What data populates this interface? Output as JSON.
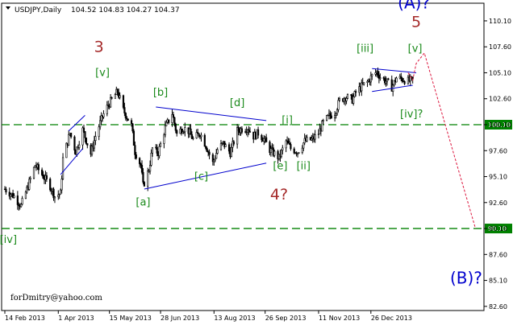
{
  "header": {
    "symbol": "USDJPY,Daily",
    "ohlc": "104.52 104.83 104.27 104.37"
  },
  "credit": "forDmitry@yahoo.com",
  "colors": {
    "candle": "#000000",
    "grid": "#c0c0c0",
    "level": "#008000",
    "trend": "#0000cd",
    "wave_green": "#1a8a1a",
    "wave_red": "#a52a2a",
    "wave_blue": "#0000cd",
    "projection": "#dc143c"
  },
  "chart_data": {
    "type": "candlestick",
    "y_ticks": [
      "110.10",
      "107.60",
      "105.10",
      "102.60",
      "100.10",
      "97.60",
      "95.10",
      "92.60",
      "90.10",
      "87.60",
      "85.10",
      "82.60"
    ],
    "x_ticks": [
      "14 Feb 2013",
      "1 Apr 2013",
      "15 May 2013",
      "28 Jun 2013",
      "13 Aug 2013",
      "26 Sep 2013",
      "11 Nov 2013",
      "26 Dec 2013"
    ],
    "ylim": [
      82.2,
      111.8
    ],
    "x_range": [
      "2013-02-14",
      "2014-02-03"
    ],
    "price_levels": [
      {
        "label": "100.10",
        "price": 100.1
      },
      {
        "label": "90.10",
        "price": 90.1
      }
    ],
    "close_path": [
      [
        "2013-02-14",
        93.9
      ],
      [
        "2013-02-22",
        93.2
      ],
      [
        "2013-02-28",
        92.3
      ],
      [
        "2013-03-06",
        94.2
      ],
      [
        "2013-03-12",
        96.2
      ],
      [
        "2013-03-18",
        95.3
      ],
      [
        "2013-03-25",
        94.2
      ],
      [
        "2013-03-29",
        93.2
      ],
      [
        "2013-04-03",
        93.5
      ],
      [
        "2013-04-05",
        96.8
      ],
      [
        "2013-04-11",
        99.3
      ],
      [
        "2013-04-16",
        97.5
      ],
      [
        "2013-04-22",
        99.6
      ],
      [
        "2013-04-29",
        97.3
      ],
      [
        "2013-05-03",
        99.0
      ],
      [
        "2013-05-09",
        100.9
      ],
      [
        "2013-05-14",
        102.0
      ],
      [
        "2013-05-22",
        103.3
      ],
      [
        "2013-05-27",
        101.5
      ],
      [
        "2013-06-03",
        100.0
      ],
      [
        "2013-06-06",
        97.5
      ],
      [
        "2013-06-11",
        96.2
      ],
      [
        "2013-06-13",
        94.2
      ],
      [
        "2013-06-18",
        95.8
      ],
      [
        "2013-06-21",
        97.8
      ],
      [
        "2013-06-26",
        97.4
      ],
      [
        "2013-07-02",
        99.8
      ],
      [
        "2013-07-08",
        101.2
      ],
      [
        "2013-07-12",
        99.2
      ],
      [
        "2013-07-17",
        99.8
      ],
      [
        "2013-07-22",
        99.5
      ],
      [
        "2013-07-26",
        98.7
      ],
      [
        "2013-08-01",
        99.3
      ],
      [
        "2013-08-06",
        98.1
      ],
      [
        "2013-08-12",
        96.4
      ],
      [
        "2013-08-16",
        97.7
      ],
      [
        "2013-08-21",
        98.3
      ],
      [
        "2013-08-27",
        97.4
      ],
      [
        "2013-09-02",
        99.5
      ],
      [
        "2013-09-06",
        99.7
      ],
      [
        "2013-09-11",
        99.8
      ],
      [
        "2013-09-16",
        99.0
      ],
      [
        "2013-09-20",
        99.3
      ],
      [
        "2013-09-25",
        98.7
      ],
      [
        "2013-09-30",
        97.7
      ],
      [
        "2013-10-04",
        97.3
      ],
      [
        "2013-10-08",
        96.9
      ],
      [
        "2013-10-14",
        98.5
      ],
      [
        "2013-10-18",
        97.8
      ],
      [
        "2013-10-24",
        97.5
      ],
      [
        "2013-10-30",
        98.5
      ],
      [
        "2013-11-06",
        98.7
      ],
      [
        "2013-11-11",
        99.3
      ],
      [
        "2013-11-15",
        100.3
      ],
      [
        "2013-11-20",
        100.9
      ],
      [
        "2013-11-25",
        101.3
      ],
      [
        "2013-11-29",
        102.4
      ],
      [
        "2013-12-04",
        102.8
      ],
      [
        "2013-12-10",
        102.5
      ],
      [
        "2013-12-13",
        103.2
      ],
      [
        "2013-12-18",
        103.8
      ],
      [
        "2013-12-23",
        104.2
      ],
      [
        "2013-12-27",
        104.8
      ],
      [
        "2013-12-31",
        105.2
      ],
      [
        "2014-01-03",
        104.7
      ],
      [
        "2014-01-08",
        104.3
      ],
      [
        "2014-01-13",
        103.7
      ],
      [
        "2014-01-17",
        104.6
      ],
      [
        "2014-01-22",
        104.5
      ],
      [
        "2014-01-27",
        104.3
      ],
      [
        "2014-01-31",
        104.37
      ]
    ],
    "trendlines": [
      {
        "from": [
          "2013-04-03",
          95.3
        ],
        "to": [
          "2013-04-22",
          97.8
        ]
      },
      {
        "from": [
          "2013-04-10",
          99.5
        ],
        "to": [
          "2013-04-24",
          101.0
        ]
      },
      {
        "from": [
          "2013-06-14",
          93.9
        ],
        "to": [
          "2013-09-27",
          96.4
        ]
      },
      {
        "from": [
          "2013-06-24",
          101.8
        ],
        "to": [
          "2013-09-27",
          100.5
        ]
      },
      {
        "from": [
          "2013-12-27",
          103.3
        ],
        "to": [
          "2014-01-31",
          103.9
        ]
      },
      {
        "from": [
          "2013-12-27",
          105.5
        ],
        "to": [
          "2014-02-03",
          105.1
        ]
      }
    ],
    "projection": [
      [
        "2014-01-27",
        105.1
      ],
      [
        "2014-01-31",
        104.4
      ],
      [
        "2014-02-03",
        106.0
      ],
      [
        "2014-02-10",
        107.0
      ],
      [
        "2014-03-26",
        90.1
      ]
    ],
    "wave_labels": [
      {
        "text": "[iv]",
        "at": [
          "2013-02-17",
          88.7
        ],
        "color": "green",
        "size": "medium"
      },
      {
        "text": "3",
        "at": [
          "2013-05-06",
          107.1
        ],
        "color": "red",
        "size": "large"
      },
      {
        "text": "[v]",
        "at": [
          "2013-05-09",
          104.8
        ],
        "color": "green",
        "size": "medium"
      },
      {
        "text": "[a]",
        "at": [
          "2013-06-13",
          92.3
        ],
        "color": "green",
        "size": "medium"
      },
      {
        "text": "[b]",
        "at": [
          "2013-06-28",
          102.9
        ],
        "color": "green",
        "size": "medium"
      },
      {
        "text": "[c]",
        "at": [
          "2013-08-02",
          94.8
        ],
        "color": "green",
        "size": "medium"
      },
      {
        "text": "[d]",
        "at": [
          "2013-09-02",
          101.9
        ],
        "color": "green",
        "size": "medium"
      },
      {
        "text": "[i]",
        "at": [
          "2013-10-15",
          100.2
        ],
        "color": "green",
        "size": "medium"
      },
      {
        "text": "[e]",
        "at": [
          "2013-10-09",
          95.8
        ],
        "color": "green",
        "size": "medium"
      },
      {
        "text": "[ii]",
        "at": [
          "2013-10-29",
          95.8
        ],
        "color": "green",
        "size": "medium"
      },
      {
        "text": "4?",
        "at": [
          "2013-10-08",
          92.9
        ],
        "color": "red",
        "size": "large"
      },
      {
        "text": "[iii]",
        "at": [
          "2013-12-21",
          107.1
        ],
        "color": "green",
        "size": "medium"
      },
      {
        "text": "[iv]?",
        "at": [
          "2014-01-30",
          100.8
        ],
        "color": "green",
        "size": "medium"
      },
      {
        "text": "[v]",
        "at": [
          "2014-02-02",
          107.1
        ],
        "color": "green",
        "size": "medium"
      },
      {
        "text": "5",
        "at": [
          "2014-02-03",
          109.5
        ],
        "color": "red",
        "size": "large"
      },
      {
        "text": "(A)?",
        "at": [
          "2014-02-01",
          111.3
        ],
        "color": "blue",
        "size": "xl"
      },
      {
        "text": "(B)?",
        "at": [
          "2014-03-18",
          84.8
        ],
        "color": "blue",
        "size": "xl"
      }
    ]
  }
}
